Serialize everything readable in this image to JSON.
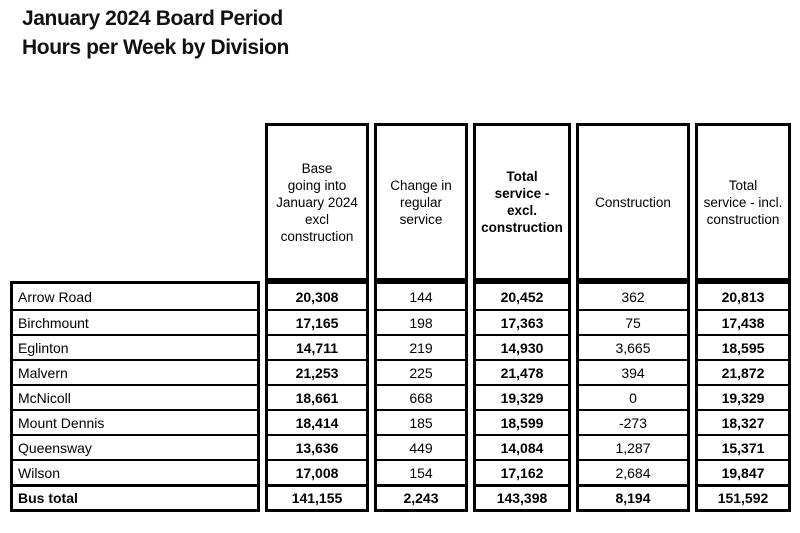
{
  "title": {
    "line1": "January 2024 Board Period",
    "line2": "Hours per Week by Division"
  },
  "colors": {
    "border": "#000000",
    "text": "#000000",
    "background": "#ffffff"
  },
  "table": {
    "columns": [
      {
        "label": "Base\ngoing into\nJanuary 2024\nexcl\nconstruction"
      },
      {
        "label": "Change in\nregular\nservice"
      },
      {
        "label": "Total\nservice -\nexcl.\nconstruction"
      },
      {
        "label": "Construction"
      },
      {
        "label": "Total\nservice - incl.\nconstruction"
      }
    ],
    "rows": [
      {
        "division": "Arrow Road",
        "values": [
          "20,308",
          "144",
          "20,452",
          "362",
          "20,813"
        ]
      },
      {
        "division": "Birchmount",
        "values": [
          "17,165",
          "198",
          "17,363",
          "75",
          "17,438"
        ]
      },
      {
        "division": "Eglinton",
        "values": [
          "14,711",
          "219",
          "14,930",
          "3,665",
          "18,595"
        ]
      },
      {
        "division": "Malvern",
        "values": [
          "21,253",
          "225",
          "21,478",
          "394",
          "21,872"
        ]
      },
      {
        "division": "McNicoll",
        "values": [
          "18,661",
          "668",
          "19,329",
          "0",
          "19,329"
        ]
      },
      {
        "division": "Mount Dennis",
        "values": [
          "18,414",
          "185",
          "18,599",
          "-273",
          "18,327"
        ]
      },
      {
        "division": "Queensway",
        "values": [
          "13,636",
          "449",
          "14,084",
          "1,287",
          "15,371"
        ]
      },
      {
        "division": "Wilson",
        "values": [
          "17,008",
          "154",
          "17,162",
          "2,684",
          "19,847"
        ]
      },
      {
        "division": "Bus total",
        "values": [
          "141,155",
          "2,243",
          "143,398",
          "8,194",
          "151,592"
        ]
      }
    ]
  }
}
